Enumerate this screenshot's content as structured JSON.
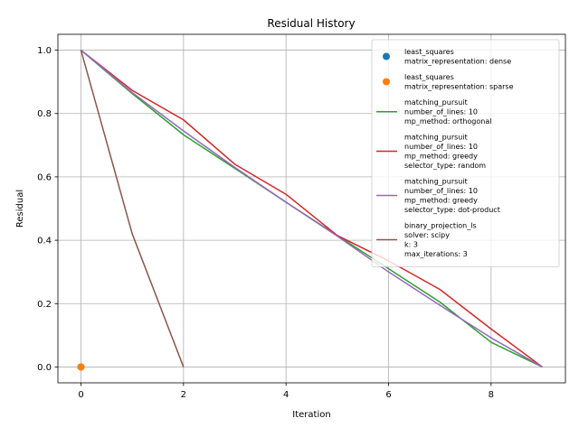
{
  "chart_data": {
    "type": "line",
    "title": "Residual History",
    "xlabel": "Iteration",
    "ylabel": "Residual",
    "xlim": [
      -0.45,
      9.45
    ],
    "ylim": [
      -0.05,
      1.05
    ],
    "xticks": [
      0,
      2,
      4,
      6,
      8
    ],
    "yticks": [
      0.0,
      0.2,
      0.4,
      0.6,
      0.8,
      1.0
    ],
    "xtick_labels": [
      "0",
      "2",
      "4",
      "6",
      "8"
    ],
    "ytick_labels": [
      "0.0",
      "0.2",
      "0.4",
      "0.6",
      "0.8",
      "1.0"
    ],
    "grid": true,
    "legend_position": "top-right",
    "series": [
      {
        "name": "least_squares\nmatrix_representation: dense",
        "style": "marker",
        "color": "#1f77b4",
        "x": [
          0
        ],
        "y": [
          0.0
        ]
      },
      {
        "name": "least_squares\nmatrix_representation: sparse",
        "style": "marker",
        "color": "#ff7f0e",
        "x": [
          0
        ],
        "y": [
          0.0
        ]
      },
      {
        "name": "matching_pursuit\nnumber_of_lines: 10\nmp_method: orthogonal",
        "style": "line",
        "color": "#2ca02c",
        "x": [
          0,
          1,
          2,
          3,
          4,
          5,
          6,
          7,
          8,
          9
        ],
        "y": [
          1.0,
          0.863,
          0.733,
          0.627,
          0.52,
          0.415,
          0.31,
          0.205,
          0.078,
          0.0
        ]
      },
      {
        "name": "matching_pursuit\nnumber_of_lines: 10\nmp_method: greedy\nselector_type: random",
        "style": "line",
        "color": "#d62728",
        "x": [
          0,
          1,
          2,
          3,
          4,
          5,
          6,
          7,
          8,
          9
        ],
        "y": [
          1.0,
          0.873,
          0.78,
          0.64,
          0.545,
          0.415,
          0.335,
          0.245,
          0.12,
          0.0
        ]
      },
      {
        "name": "matching_pursuit\nnumber_of_lines: 10\nmp_method: greedy\nselector_type: dot-product",
        "style": "line",
        "color": "#9467bd",
        "x": [
          0,
          1,
          2,
          3,
          4,
          5,
          6,
          7,
          8,
          9
        ],
        "y": [
          1.0,
          0.866,
          0.745,
          0.63,
          0.52,
          0.413,
          0.3,
          0.195,
          0.092,
          0.0
        ]
      },
      {
        "name": "binary_projection_ls\nsolver: scipy\nk: 3\nmax_iterations: 3",
        "style": "line",
        "color": "#8c564b",
        "x": [
          0,
          1,
          2
        ],
        "y": [
          1.0,
          0.42,
          0.0
        ]
      }
    ]
  }
}
